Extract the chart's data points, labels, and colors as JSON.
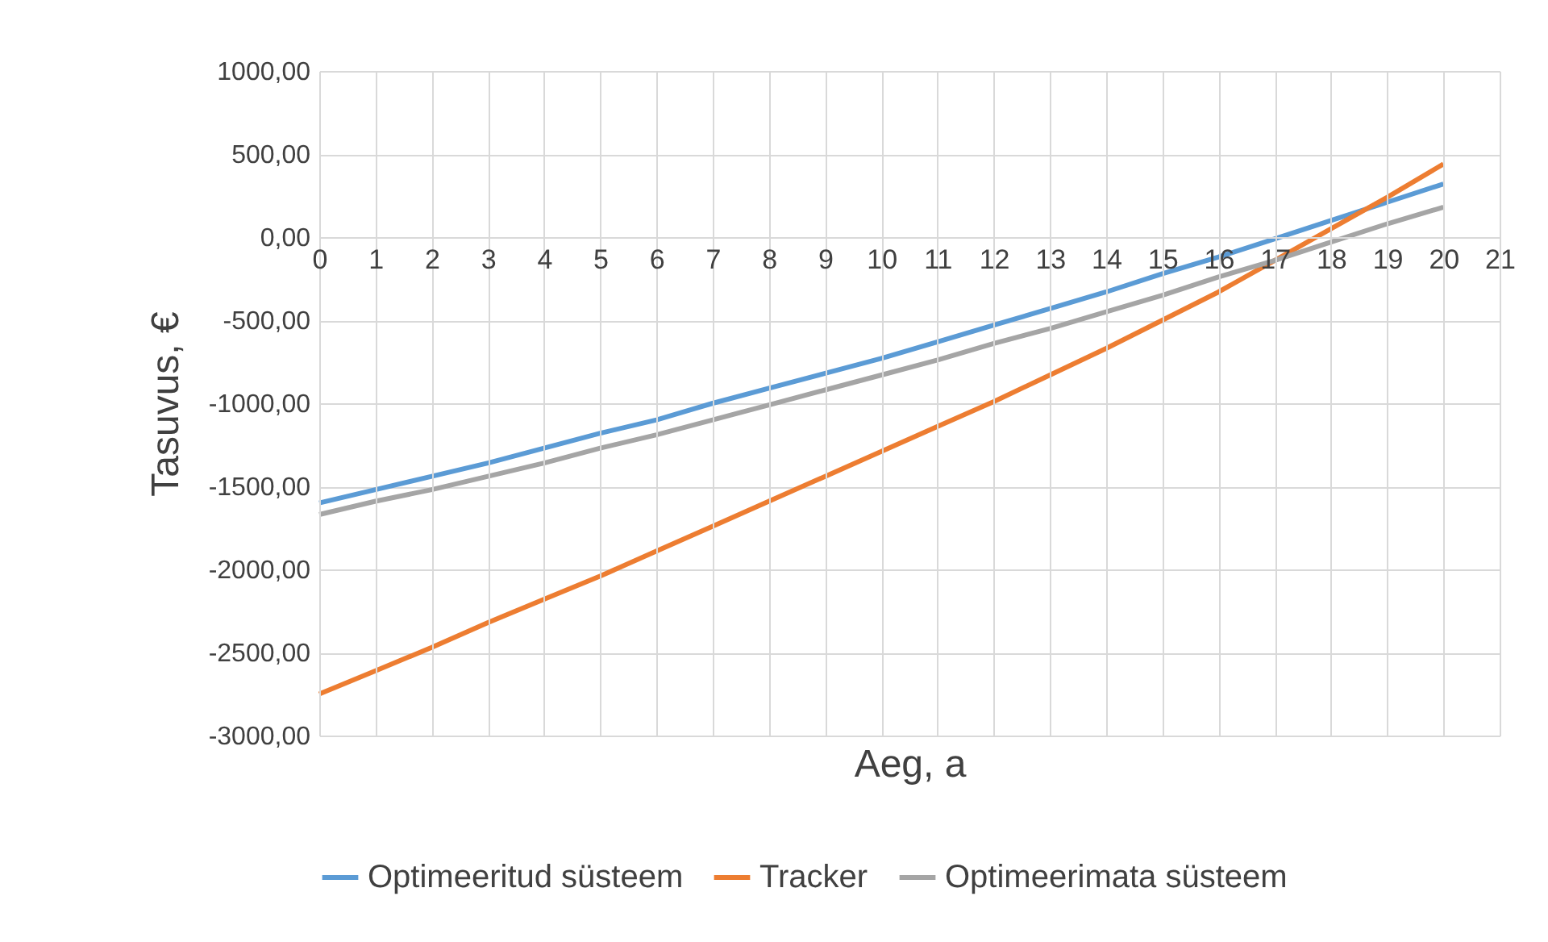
{
  "chart_data": {
    "type": "line",
    "xlabel": "Aeg, a",
    "ylabel": "Tasuvus, €",
    "x": [
      0,
      1,
      2,
      3,
      4,
      5,
      6,
      7,
      8,
      9,
      10,
      11,
      12,
      13,
      14,
      15,
      16,
      17,
      18,
      19,
      20
    ],
    "series": [
      {
        "name": "Optimeeritud süsteem",
        "color": "#5b9bd5",
        "values": [
          -1600,
          -1520,
          -1440,
          -1360,
          -1270,
          -1180,
          -1100,
          -1000,
          -910,
          -820,
          -730,
          -630,
          -530,
          -430,
          -330,
          -220,
          -120,
          -10,
          100,
          210,
          320
        ]
      },
      {
        "name": "Tracker",
        "color": "#ed7d31",
        "values": [
          -2750,
          -2610,
          -2470,
          -2320,
          -2180,
          -2040,
          -1890,
          -1740,
          -1590,
          -1440,
          -1290,
          -1140,
          -990,
          -830,
          -670,
          -500,
          -330,
          -140,
          50,
          240,
          440
        ]
      },
      {
        "name": "Optimeerimata süsteem",
        "color": "#a5a5a5",
        "values": [
          -1670,
          -1590,
          -1520,
          -1440,
          -1360,
          -1270,
          -1190,
          -1100,
          -1010,
          -920,
          -830,
          -740,
          -640,
          -550,
          -450,
          -350,
          -240,
          -140,
          -30,
          80,
          180
        ]
      }
    ],
    "xlim": [
      0,
      21
    ],
    "xticks": [
      0,
      1,
      2,
      3,
      4,
      5,
      6,
      7,
      8,
      9,
      10,
      11,
      12,
      13,
      14,
      15,
      16,
      17,
      18,
      19,
      20,
      21
    ],
    "ylim": [
      -3000,
      1000
    ],
    "yticks": [
      {
        "value": -3000,
        "label": "-3000,00"
      },
      {
        "value": -2500,
        "label": "-2500,00"
      },
      {
        "value": -2000,
        "label": "-2000,00"
      },
      {
        "value": -1500,
        "label": "-1500,00"
      },
      {
        "value": -1000,
        "label": "-1000,00"
      },
      {
        "value": -500,
        "label": "-500,00"
      },
      {
        "value": 0,
        "label": "0,00"
      },
      {
        "value": 500,
        "label": "500,00"
      },
      {
        "value": 1000,
        "label": "1000,00"
      }
    ],
    "grid": true,
    "legend": "bottom",
    "marker": "none",
    "line_style": "solid"
  }
}
